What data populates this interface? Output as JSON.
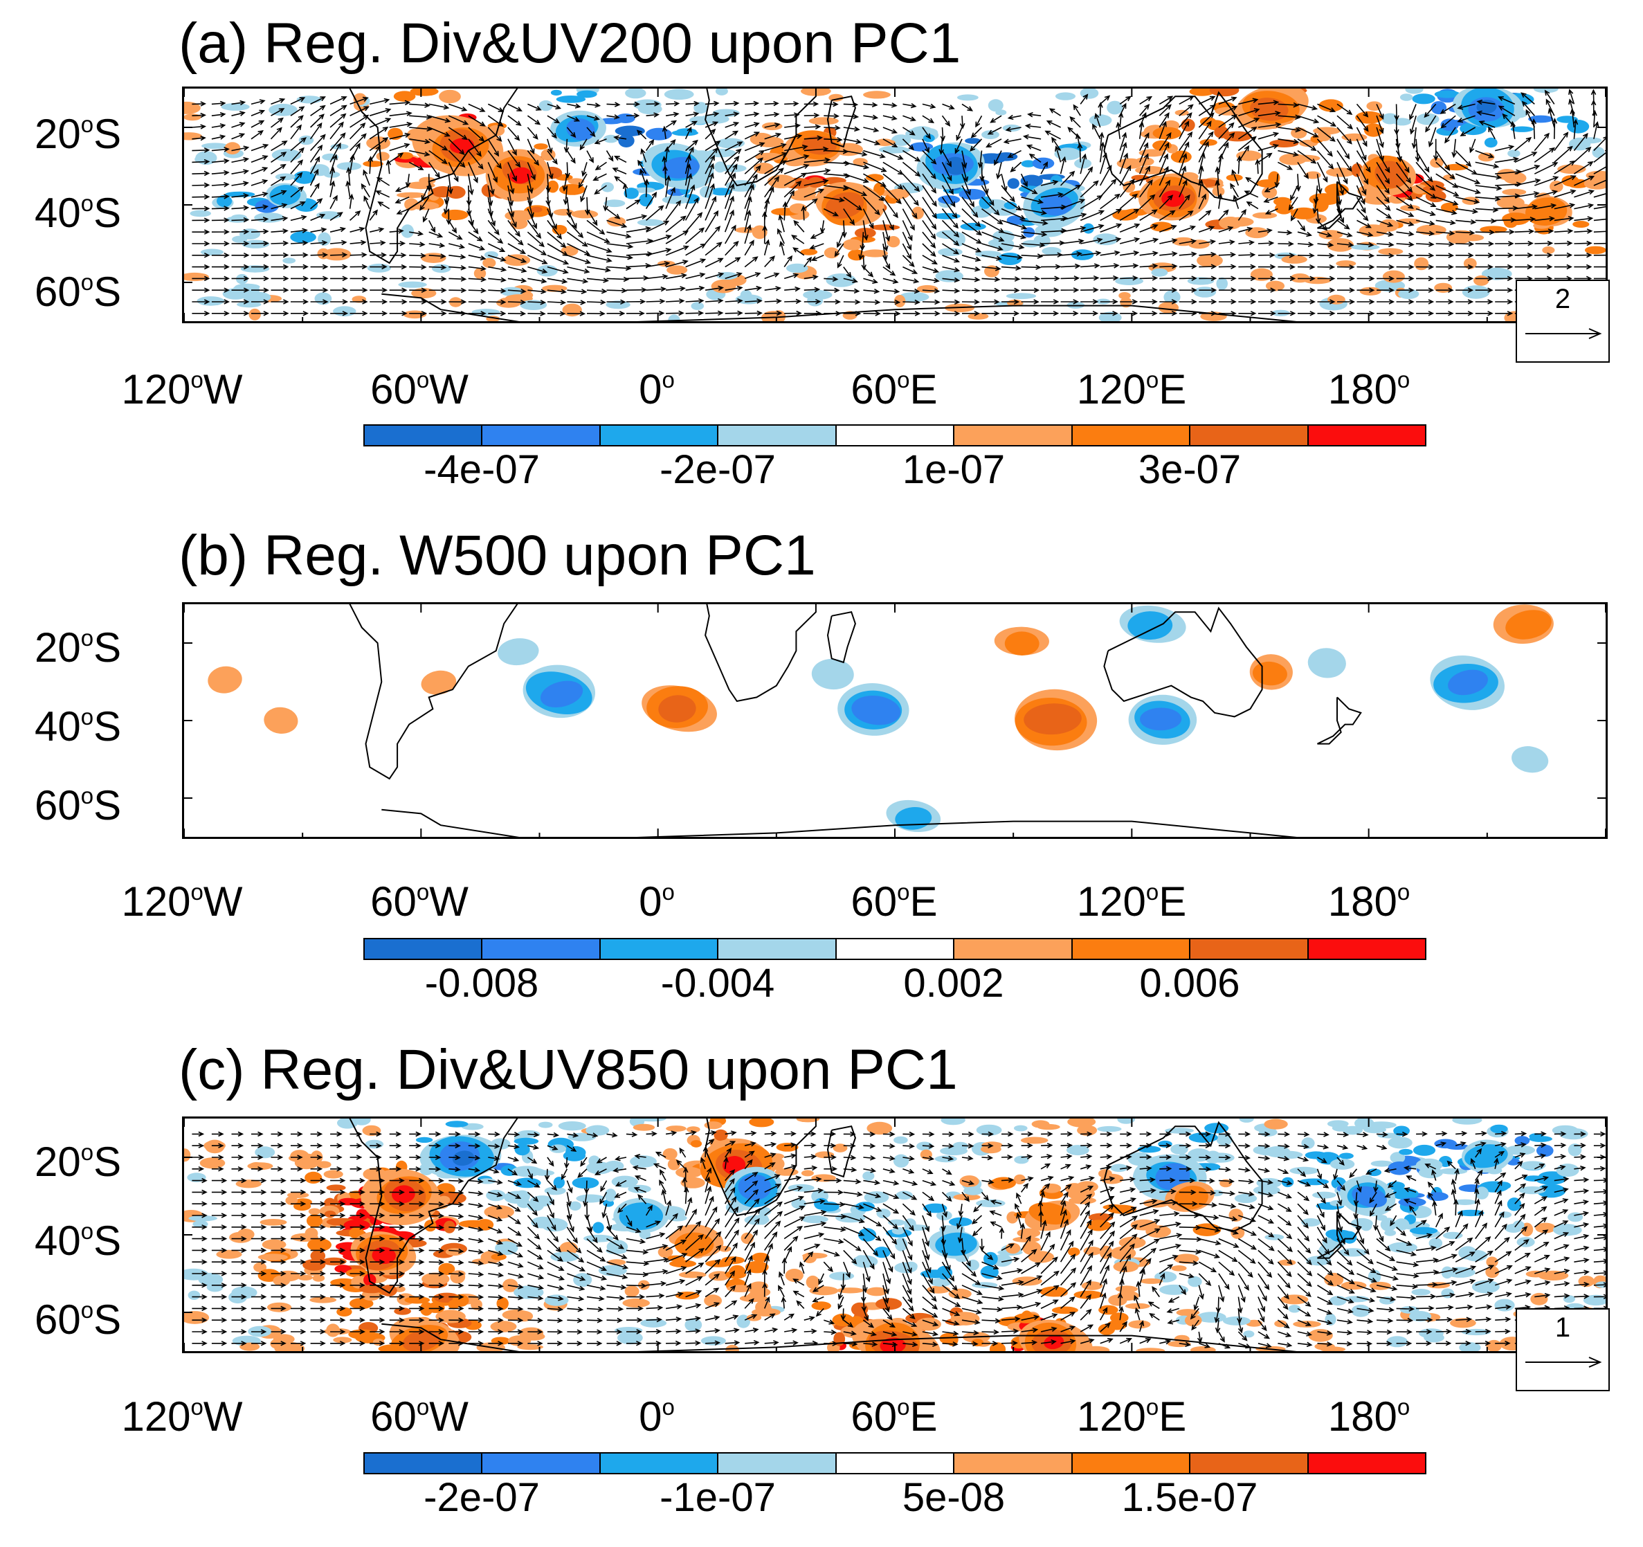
{
  "panels": [
    {
      "id": "a",
      "title": "(a) Reg. Div&UV200 upon PC1",
      "variable": "Div&UV200",
      "has_vectors": true,
      "ref_vector": "2",
      "colorbar_ticks": [
        "-4e-07",
        "-2e-07",
        "1e-07",
        "3e-07"
      ]
    },
    {
      "id": "b",
      "title": "(b) Reg. W500 upon PC1",
      "variable": "W500",
      "has_vectors": false,
      "ref_vector": "",
      "colorbar_ticks": [
        "-0.008",
        "-0.004",
        "0.002",
        "0.006"
      ]
    },
    {
      "id": "c",
      "title": "(c) Reg. Div&UV850 upon PC1",
      "variable": "Div&UV850",
      "has_vectors": true,
      "ref_vector": "1",
      "colorbar_ticks": [
        "-2e-07",
        "-1e-07",
        "5e-08",
        "1.5e-07"
      ]
    }
  ],
  "axes": {
    "lat_labels": [
      {
        "deg": "20",
        "hemi": "S",
        "value": -20
      },
      {
        "deg": "40",
        "hemi": "S",
        "value": -40
      },
      {
        "deg": "60",
        "hemi": "S",
        "value": -60
      }
    ],
    "lon_labels": [
      {
        "deg": "120",
        "hemi": "W",
        "value": -120
      },
      {
        "deg": "60",
        "hemi": "W",
        "value": -60
      },
      {
        "deg": "0",
        "hemi": "",
        "value": 0
      },
      {
        "deg": "60",
        "hemi": "E",
        "value": 60
      },
      {
        "deg": "120",
        "hemi": "E",
        "value": 120
      },
      {
        "deg": "180",
        "hemi": "",
        "value": 180
      }
    ],
    "lat_range": [
      -70,
      -10
    ],
    "lon_range": [
      -120,
      240
    ]
  },
  "colorbar": {
    "colors": [
      "#1a6fd0",
      "#2f82f0",
      "#1ea8ec",
      "#a4d6ea",
      "#ffffff",
      "#fca15a",
      "#fb7d10",
      "#e86418",
      "#fb0d0d"
    ]
  },
  "chart_data": [
    {
      "type": "heatmap",
      "title": "(a) Reg. Div&UV200 upon PC1",
      "field": "200-hPa divergence with 200-hPa wind vectors, regressed upon PC1",
      "x_range": [
        -120,
        240
      ],
      "y_range": [
        -70,
        -10
      ],
      "colorbar_ticks": [
        -4e-07,
        -2e-07,
        1e-07,
        3e-07
      ],
      "vector_reference": 2,
      "anomalies": [
        {
          "lon": -50,
          "lat": -25,
          "sign": 1,
          "amp": 1.0
        },
        {
          "lon": -35,
          "lat": -32,
          "sign": 1,
          "amp": 0.9
        },
        {
          "lon": -20,
          "lat": -20,
          "sign": -1,
          "amp": 0.7
        },
        {
          "lon": 5,
          "lat": -30,
          "sign": -1,
          "amp": 0.8
        },
        {
          "lon": 40,
          "lat": -25,
          "sign": 1,
          "amp": 0.7
        },
        {
          "lon": 48,
          "lat": -40,
          "sign": 1,
          "amp": 0.8
        },
        {
          "lon": 75,
          "lat": -30,
          "sign": -1,
          "amp": 0.9
        },
        {
          "lon": 100,
          "lat": -40,
          "sign": -1,
          "amp": 0.8
        },
        {
          "lon": 130,
          "lat": -38,
          "sign": 1,
          "amp": 0.9
        },
        {
          "lon": 155,
          "lat": -15,
          "sign": 1,
          "amp": 0.8
        },
        {
          "lon": 185,
          "lat": -32,
          "sign": 1,
          "amp": 0.8
        },
        {
          "lon": 210,
          "lat": -15,
          "sign": -1,
          "amp": 0.9
        },
        {
          "lon": -95,
          "lat": -38,
          "sign": -1,
          "amp": 0.5
        },
        {
          "lon": 225,
          "lat": -42,
          "sign": 1,
          "amp": 0.6
        }
      ],
      "circulations": [
        {
          "lon": -65,
          "lat": -28,
          "dir": -1
        },
        {
          "lon": -10,
          "lat": -42,
          "dir": 1
        },
        {
          "lon": 40,
          "lat": -40,
          "dir": -1
        },
        {
          "lon": 95,
          "lat": -35,
          "dir": 1
        },
        {
          "lon": 155,
          "lat": -28,
          "dir": -1
        },
        {
          "lon": 210,
          "lat": -25,
          "dir": 1
        }
      ]
    },
    {
      "type": "heatmap",
      "title": "(b) Reg. W500 upon PC1",
      "field": "500-hPa vertical velocity regressed upon PC1",
      "x_range": [
        -120,
        240
      ],
      "y_range": [
        -70,
        -10
      ],
      "colorbar_ticks": [
        -0.008,
        -0.004,
        0.002,
        0.006
      ],
      "anomalies": [
        {
          "lon": -110,
          "lat": -30,
          "sign": 1,
          "amp": 0.35
        },
        {
          "lon": -95,
          "lat": -40,
          "sign": 1,
          "amp": 0.35
        },
        {
          "lon": -55,
          "lat": -30,
          "sign": 1,
          "amp": 0.35
        },
        {
          "lon": -35,
          "lat": -22,
          "sign": -1,
          "amp": 0.35
        },
        {
          "lon": -25,
          "lat": -33,
          "sign": -1,
          "amp": 0.75
        },
        {
          "lon": 5,
          "lat": -37,
          "sign": 1,
          "amp": 0.7
        },
        {
          "lon": 45,
          "lat": -28,
          "sign": -1,
          "amp": 0.4
        },
        {
          "lon": 55,
          "lat": -37,
          "sign": -1,
          "amp": 0.75
        },
        {
          "lon": 100,
          "lat": -40,
          "sign": 1,
          "amp": 0.85
        },
        {
          "lon": 92,
          "lat": -20,
          "sign": 1,
          "amp": 0.45
        },
        {
          "lon": 125,
          "lat": -15,
          "sign": -1,
          "amp": 0.55
        },
        {
          "lon": 128,
          "lat": -40,
          "sign": -1,
          "amp": 0.65
        },
        {
          "lon": 155,
          "lat": -28,
          "sign": 1,
          "amp": 0.45
        },
        {
          "lon": 170,
          "lat": -25,
          "sign": -1,
          "amp": 0.4
        },
        {
          "lon": 205,
          "lat": -30,
          "sign": -1,
          "amp": 0.7
        },
        {
          "lon": 220,
          "lat": -15,
          "sign": 1,
          "amp": 0.55
        },
        {
          "lon": 65,
          "lat": -65,
          "sign": -1,
          "amp": 0.45
        },
        {
          "lon": 220,
          "lat": -50,
          "sign": -1,
          "amp": 0.35
        }
      ]
    },
    {
      "type": "heatmap",
      "title": "(c) Reg. Div&UV850 upon PC1",
      "field": "850-hPa divergence with 850-hPa wind vectors, regressed upon PC1",
      "x_range": [
        -120,
        240
      ],
      "y_range": [
        -70,
        -10
      ],
      "colorbar_ticks": [
        -2e-07,
        -1e-07,
        5e-08,
        1.5e-07
      ],
      "vector_reference": 1,
      "anomalies": [
        {
          "lon": -65,
          "lat": -30,
          "sign": 1,
          "amp": 1.0
        },
        {
          "lon": -70,
          "lat": -45,
          "sign": 1,
          "amp": 0.9
        },
        {
          "lon": -50,
          "lat": -20,
          "sign": -1,
          "amp": 0.9
        },
        {
          "lon": 20,
          "lat": -22,
          "sign": 1,
          "amp": 1.0
        },
        {
          "lon": 25,
          "lat": -28,
          "sign": -1,
          "amp": 0.8
        },
        {
          "lon": 130,
          "lat": -25,
          "sign": -1,
          "amp": 0.8
        },
        {
          "lon": 135,
          "lat": -30,
          "sign": 1,
          "amp": 0.6
        },
        {
          "lon": 60,
          "lat": -68,
          "sign": 1,
          "amp": 1.0
        },
        {
          "lon": 100,
          "lat": -68,
          "sign": 1,
          "amp": 0.9
        },
        {
          "lon": -60,
          "lat": -67,
          "sign": 1,
          "amp": 0.8
        },
        {
          "lon": -5,
          "lat": -35,
          "sign": -1,
          "amp": 0.6
        },
        {
          "lon": 10,
          "lat": -42,
          "sign": 1,
          "amp": 0.6
        },
        {
          "lon": 75,
          "lat": -42,
          "sign": -1,
          "amp": 0.6
        },
        {
          "lon": 100,
          "lat": -35,
          "sign": 1,
          "amp": 0.6
        },
        {
          "lon": 180,
          "lat": -30,
          "sign": -1,
          "amp": 0.7
        },
        {
          "lon": 210,
          "lat": -20,
          "sign": -1,
          "amp": 0.6
        }
      ],
      "circulations": [
        {
          "lon": -5,
          "lat": -38,
          "dir": 1
        },
        {
          "lon": 40,
          "lat": -45,
          "dir": -1
        },
        {
          "lon": 85,
          "lat": -45,
          "dir": 1
        },
        {
          "lon": 130,
          "lat": -50,
          "dir": -1
        },
        {
          "lon": 190,
          "lat": -40,
          "dir": 1
        }
      ]
    }
  ]
}
